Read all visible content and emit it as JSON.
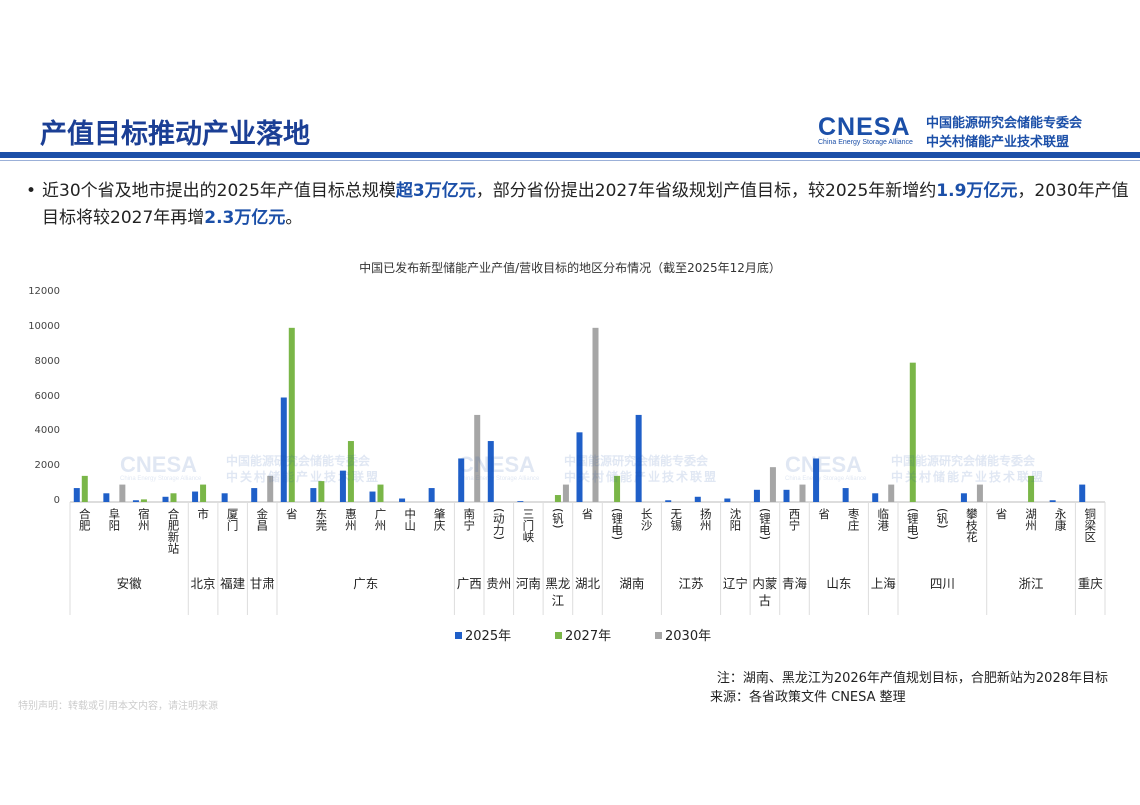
{
  "header": {
    "title": "产值目标推动产业落地",
    "logo": "CNESA",
    "logo_en": "China Energy Storage Alliance",
    "org_line1": "中国能源研究会储能专委会",
    "org_line2": "中关村储能产业技术联盟"
  },
  "bullet": [
    {
      "text": "近30个省及地市提出的2025年产值目标总规模",
      "strong": false
    },
    {
      "text": "超3万亿元",
      "strong": true
    },
    {
      "text": "，部分省份提出2027年省级规划产值目标，较2025年新增约",
      "strong": false
    },
    {
      "text": "1.9万亿元",
      "strong": true
    },
    {
      "text": "，2030年产值目标将较2027年再增",
      "strong": false
    },
    {
      "text": "2.3万亿元",
      "strong": true
    },
    {
      "text": "。",
      "strong": false
    }
  ],
  "watermark": {
    "logo": "CNESA",
    "line1": "中国能源研究会储能专委会",
    "line2": "中关村储能产业技术联盟",
    "line3": "China Energy Storage Alliance"
  },
  "chart_data": {
    "type": "bar",
    "title": "中国已发布新型储能产业产值/营收目标的地区分布情况（截至2025年12月底）",
    "categories": [
      [
        "安徽",
        "合肥"
      ],
      [
        "安徽",
        "阜阳"
      ],
      [
        "安徽",
        "宿州"
      ],
      [
        "安徽",
        "合肥新站"
      ],
      [
        "北京",
        "市"
      ],
      [
        "福建",
        "厦门"
      ],
      [
        "甘肃",
        "金昌"
      ],
      [
        "广东",
        "省"
      ],
      [
        "广东",
        "东莞"
      ],
      [
        "广东",
        "惠州"
      ],
      [
        "广东",
        "广州"
      ],
      [
        "广东",
        "中山"
      ],
      [
        "广东",
        "肇庆"
      ],
      [
        "广西",
        "南宁"
      ],
      [
        "贵州",
        "(动力)"
      ],
      [
        "河南",
        "三门峡"
      ],
      [
        "黑龙江",
        "(钒)"
      ],
      [
        "湖北",
        "省"
      ],
      [
        "湖南",
        "(锂电)"
      ],
      [
        "湖南",
        "长沙"
      ],
      [
        "江苏",
        "无锡"
      ],
      [
        "江苏",
        "扬州"
      ],
      [
        "辽宁",
        "沈阳"
      ],
      [
        "内蒙古",
        "(锂电)"
      ],
      [
        "青海",
        "西宁"
      ],
      [
        "山东",
        "省"
      ],
      [
        "山东",
        "枣庄"
      ],
      [
        "上海",
        "临港"
      ],
      [
        "四川",
        "(锂电)"
      ],
      [
        "四川",
        "(钒)"
      ],
      [
        "四川",
        "攀枝花"
      ],
      [
        "浙江",
        "省"
      ],
      [
        "浙江",
        "湖州"
      ],
      [
        "浙江",
        "永康"
      ],
      [
        "重庆",
        "铜梁区"
      ]
    ],
    "series": [
      {
        "name": "2025年",
        "color": "#1f5fc8",
        "values": [
          800,
          500,
          100,
          300,
          600,
          500,
          800,
          6000,
          800,
          1800,
          600,
          200,
          800,
          2500,
          3500,
          50,
          null,
          4000,
          null,
          5000,
          100,
          300,
          200,
          700,
          700,
          2500,
          800,
          500,
          null,
          null,
          500,
          null,
          null,
          100,
          1000
        ]
      },
      {
        "name": "2027年",
        "color": "#7ab648",
        "values": [
          1500,
          null,
          150,
          500,
          1000,
          null,
          null,
          10000,
          1200,
          3500,
          1000,
          null,
          null,
          null,
          null,
          null,
          400,
          null,
          1500,
          null,
          null,
          null,
          null,
          null,
          null,
          null,
          null,
          null,
          8000,
          null,
          null,
          null,
          1500,
          null,
          null
        ]
      },
      {
        "name": "2030年",
        "color": "#a6a6a6",
        "values": [
          null,
          1000,
          null,
          null,
          null,
          null,
          1500,
          null,
          null,
          null,
          null,
          null,
          null,
          5000,
          null,
          null,
          1000,
          10000,
          null,
          null,
          null,
          null,
          null,
          2000,
          1000,
          null,
          null,
          1000,
          null,
          null,
          1000,
          null,
          null,
          null,
          null
        ]
      }
    ],
    "ylim": [
      0,
      12000
    ],
    "yticks": [
      0,
      2000,
      4000,
      6000,
      8000,
      10000,
      12000
    ],
    "grid": false,
    "legend": "bottom"
  },
  "notes": {
    "note": "注：湖南、黑龙江为2026年产值规划目标，合肥新站为2028年目标",
    "source": "来源：各省政策文件   CNESA 整理",
    "disclaimer": "特别声明：转载或引用本文内容，请注明来源"
  }
}
